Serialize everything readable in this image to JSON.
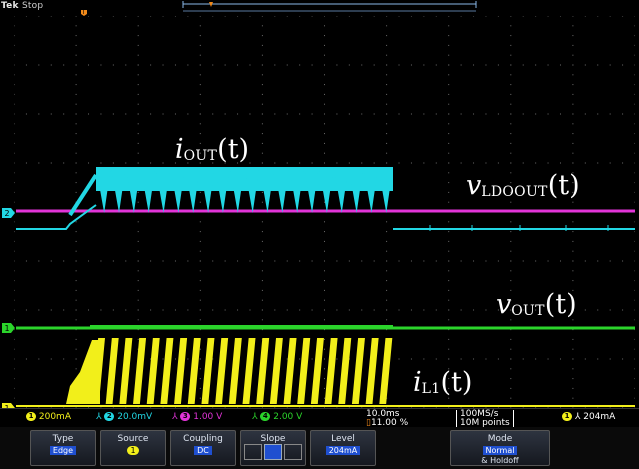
{
  "header": {
    "brand": "Tek",
    "state": "Stop"
  },
  "colors": {
    "ch1": "#f2ef1a",
    "ch2": "#22d7e4",
    "ch3": "#e234d8",
    "ch4": "#2bd42b",
    "grid": "#6d6d6d",
    "menu_value_bg": "#1f4fd0"
  },
  "trace_labels": {
    "iout": {
      "var": "i",
      "sub": "OUT",
      "arg": "(t)"
    },
    "vldoout": {
      "var": "v",
      "sub": "LDOOUT",
      "arg": "(t)"
    },
    "vout": {
      "var": "v",
      "sub": "OUT",
      "arg": "(t)"
    },
    "il1": {
      "var": "i",
      "sub": "L1",
      "arg": "(t)"
    }
  },
  "markers": {
    "ch2": "2",
    "ch4": "1",
    "ch1": "1",
    "ch3": "3"
  },
  "status": {
    "ch1_num": "1",
    "ch1_scale": "200mA",
    "ch2_num": "2",
    "ch2_scale": "20.0mV",
    "ch3_num": "3",
    "ch3_scale": "1.00 V",
    "ch4_num": "4",
    "ch4_scale": "2.00 V",
    "timebase": "10.0ms",
    "trigger_pos": "11.00 %",
    "sample_rate": "100MS/s",
    "record_length": "10M points",
    "trig_src": "1",
    "trig_level": "204mA"
  },
  "menu": {
    "type_title": "Type",
    "type_value": "Edge",
    "source_title": "Source",
    "source_value": "1",
    "coupling_title": "Coupling",
    "coupling_value": "DC",
    "slope_title": "Slope",
    "level_title": "Level",
    "level_value": "204mA",
    "mode_title": "Mode",
    "mode_value": "Normal",
    "mode_sub": "& Holdoff"
  }
}
